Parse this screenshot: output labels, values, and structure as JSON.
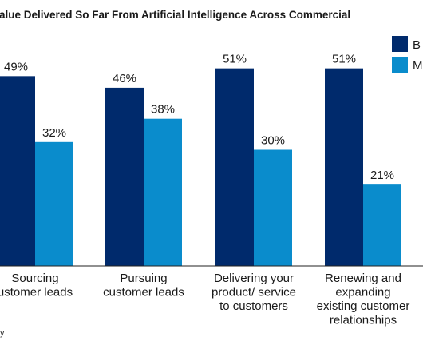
{
  "colors": {
    "series_1": "#002a6c",
    "series_2": "#0a8ccc",
    "baseline": "#222222"
  },
  "chart_data": {
    "type": "bar",
    "title": "alue Delivered So Far From Artificial Intelligence Across Commercial",
    "categories": [
      [
        "Sourcing",
        "ustomer leads"
      ],
      [
        "Pursuing",
        "customer leads"
      ],
      [
        "Delivering your",
        "product/ service",
        "to customers"
      ],
      [
        "Renewing and",
        "expanding",
        "existing customer",
        "relationships"
      ]
    ],
    "series": [
      {
        "name": "B",
        "values": [
          49,
          46,
          51,
          51
        ],
        "labels": [
          "49%",
          "46%",
          "51%",
          "51%"
        ]
      },
      {
        "name": "M",
        "values": [
          32,
          38,
          30,
          21
        ],
        "labels": [
          "32%",
          "38%",
          "30%",
          "21%"
        ]
      }
    ],
    "ylim": [
      0,
      60
    ],
    "grid": false,
    "legend": "top-right"
  },
  "source_text": "y"
}
